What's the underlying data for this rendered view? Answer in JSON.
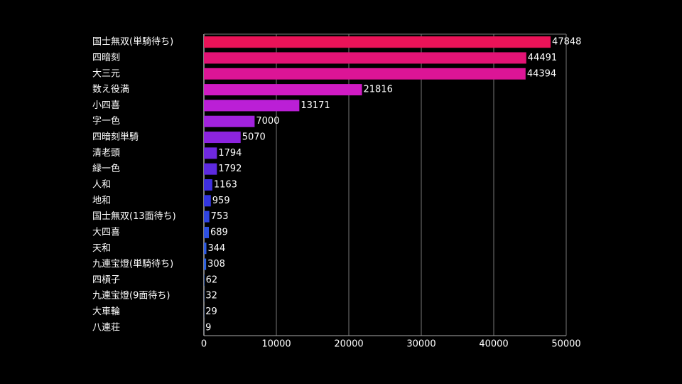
{
  "chart_data": {
    "type": "bar",
    "orientation": "horizontal",
    "categories": [
      "国士無双(単騎待ち)",
      "四暗刻",
      "大三元",
      "数え役満",
      "小四喜",
      "字一色",
      "四暗刻単騎",
      "清老頭",
      "緑一色",
      "人和",
      "地和",
      "国士無双(13面待ち)",
      "大四喜",
      "天和",
      "九連宝燈(単騎待ち)",
      "四槓子",
      "九連宝燈(9面待ち)",
      "大車輪",
      "八連荘"
    ],
    "values": [
      47848,
      44491,
      44394,
      21816,
      13171,
      7000,
      5070,
      1794,
      1792,
      1163,
      959,
      753,
      689,
      344,
      308,
      62,
      32,
      29,
      9
    ],
    "colors": [
      "#ea1358",
      "#e31376",
      "#dc1596",
      "#d11bc4",
      "#bb1fd6",
      "#a222de",
      "#8c24df",
      "#7028e0",
      "#5d2ae0",
      "#3f2fe0",
      "#3336e0",
      "#2f44e0",
      "#2e50e0",
      "#2e5ae0",
      "#2e62e0",
      "#2e66e0",
      "#2e6ae0",
      "#2e6ee0",
      "#2e72e0"
    ],
    "xlim": [
      0,
      50000
    ],
    "xticks": [
      0,
      10000,
      20000,
      30000,
      40000,
      50000
    ],
    "grid": true
  }
}
